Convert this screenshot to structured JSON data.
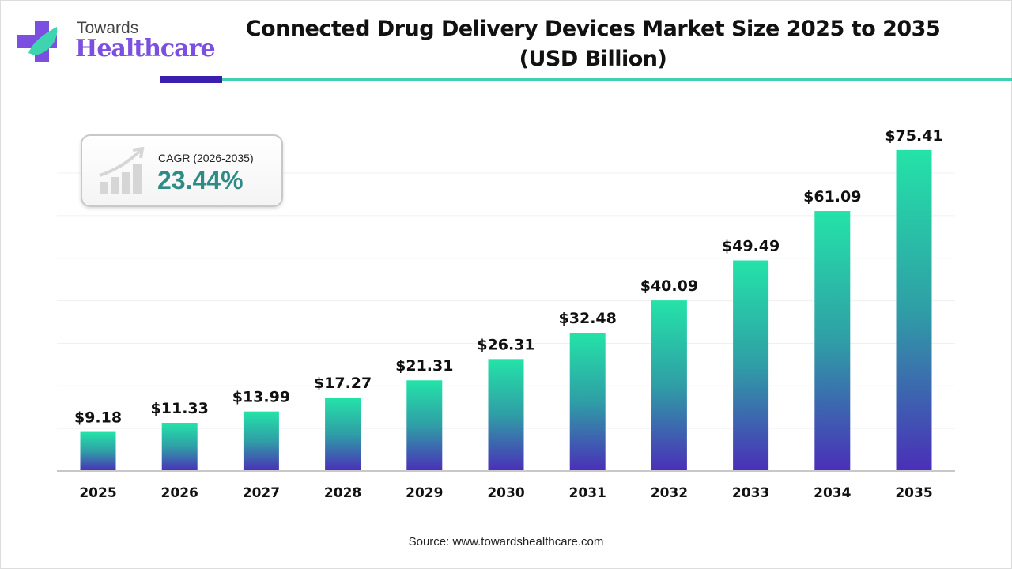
{
  "logo": {
    "line1": "Towards",
    "line2": "Healthcare"
  },
  "title": {
    "line1": "Connected Drug Delivery Devices Market Size 2025 to 2035",
    "line2": "(USD Billion)"
  },
  "cagr": {
    "label": "CAGR (2026-2035)",
    "value": "23.44%"
  },
  "source": "Source: www.towardshealthcare.com",
  "colors": {
    "bar_top": "#24e3a8",
    "bar_bottom": "#4a2fb8",
    "accent_dark": "#3a1fae",
    "accent_teal": "#40d0b0",
    "cagr_text": "#2e8b86"
  },
  "chart_data": {
    "type": "bar",
    "title": "Connected Drug Delivery Devices Market Size 2025 to 2035 (USD Billion)",
    "categories": [
      "2025",
      "2026",
      "2027",
      "2028",
      "2029",
      "2030",
      "2031",
      "2032",
      "2033",
      "2034",
      "2035"
    ],
    "values": [
      9.18,
      11.33,
      13.99,
      17.27,
      21.31,
      26.31,
      32.48,
      40.09,
      49.49,
      61.09,
      75.41
    ],
    "labels": [
      "$9.18",
      "$11.33",
      "$13.99",
      "$17.27",
      "$21.31",
      "$26.31",
      "$32.48",
      "$40.09",
      "$49.49",
      "$61.09",
      "$75.41"
    ],
    "xlabel": "",
    "ylabel": "",
    "ylim": [
      0,
      80
    ],
    "grid": true,
    "legend": "none"
  }
}
